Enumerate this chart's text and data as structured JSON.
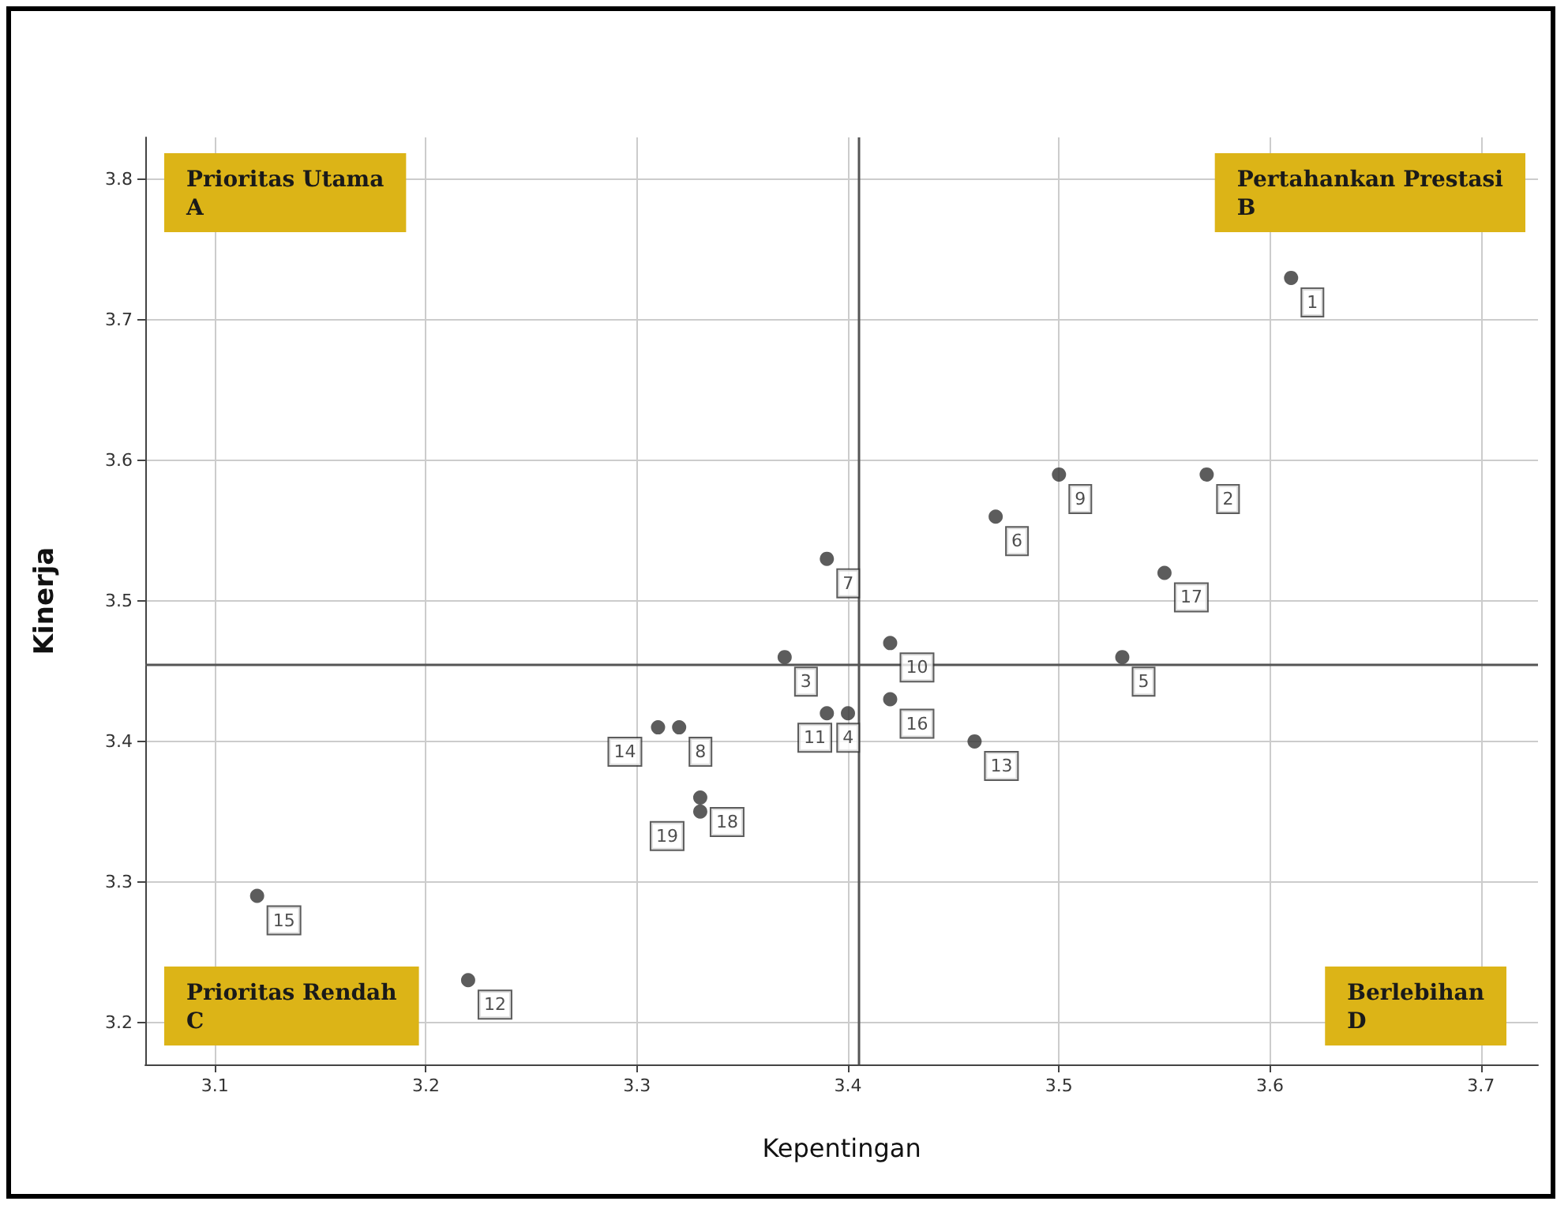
{
  "chart_data": {
    "type": "scatter",
    "xlabel": "Kepentingan",
    "ylabel": "Kinerja",
    "x": [
      3.61,
      3.57,
      3.37,
      3.39,
      3.53,
      3.47,
      3.39,
      3.32,
      3.5,
      3.42,
      3.4,
      3.22,
      3.46,
      3.31,
      3.12,
      3.42,
      3.55,
      3.33,
      3.33
    ],
    "series": [
      {
        "color": "#333333",
        "values": [
          3.73,
          3.59,
          3.46,
          3.42,
          3.46,
          3.56,
          3.53,
          3.41,
          3.59,
          3.47,
          3.42,
          3.23,
          3.4,
          3.41,
          3.29,
          3.43,
          3.52,
          3.36,
          3.35
        ]
      }
    ],
    "xlim": [
      3.067,
      3.727
    ],
    "xticks": [
      3.1,
      3.2,
      3.3,
      3.4,
      3.5,
      3.6,
      3.7
    ],
    "ylim": [
      3.17,
      3.83
    ],
    "yticks": [
      3.2,
      3.3,
      3.4,
      3.5,
      3.6,
      3.7,
      3.8
    ],
    "ref_lines": [
      {
        "axis": "x",
        "value": 3.405,
        "color": "#555555"
      },
      {
        "axis": "y",
        "value": 3.455,
        "color": "#555555"
      }
    ],
    "annotations": [
      "Prioritas Utama\nA",
      "Pertahankan Prestasi\nB",
      "Prioritas Rendah\nC",
      "Berlebihan\nD",
      {
        "text": "1",
        "x": 3.61,
        "y": 3.73
      },
      {
        "text": "2",
        "x": 3.57,
        "y": 3.59
      },
      {
        "text": "3",
        "x": 3.37,
        "y": 3.46
      },
      {
        "text": "4",
        "x": 3.39,
        "y": 3.42
      },
      {
        "text": "5",
        "x": 3.53,
        "y": 3.46
      },
      {
        "text": "6",
        "x": 3.47,
        "y": 3.56
      },
      {
        "text": "7",
        "x": 3.39,
        "y": 3.53
      },
      {
        "text": "8",
        "x": 3.32,
        "y": 3.41
      },
      {
        "text": "9",
        "x": 3.5,
        "y": 3.59
      },
      {
        "text": "10",
        "x": 3.42,
        "y": 3.47
      },
      {
        "text": "11",
        "x": 3.4,
        "y": 3.42
      },
      {
        "text": "12",
        "x": 3.22,
        "y": 3.23
      },
      {
        "text": "13",
        "x": 3.46,
        "y": 3.4
      },
      {
        "text": "14",
        "x": 3.31,
        "y": 3.41
      },
      {
        "text": "15",
        "x": 3.12,
        "y": 3.29
      },
      {
        "text": "16",
        "x": 3.42,
        "y": 3.43
      },
      {
        "text": "17",
        "x": 3.55,
        "y": 3.52
      },
      {
        "text": "18",
        "x": 3.33,
        "y": 3.36
      },
      {
        "text": "19",
        "x": 3.33,
        "y": 3.35
      }
    ],
    "grid": true,
    "marker": "circle"
  }
}
